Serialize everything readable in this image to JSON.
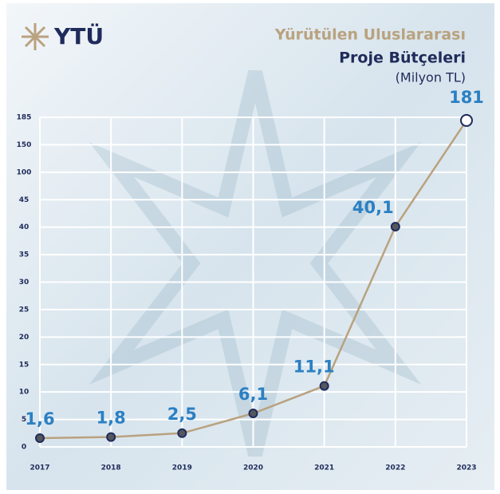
{
  "logo": "YTÜ",
  "chart_data": {
    "type": "line",
    "title": "Yürütülen Uluslararası",
    "subtitle": "Proje Bütçeleri",
    "unit_note": "(Milyon TL)",
    "categories": [
      "2017",
      "2018",
      "2019",
      "2020",
      "2021",
      "2022",
      "2023"
    ],
    "series": [
      {
        "name": "Proje Bütçeleri",
        "color": "#b9a27f",
        "values": [
          1.6,
          1.8,
          2.5,
          6.1,
          11.1,
          40.1,
          181
        ],
        "value_labels": [
          "1,6",
          "1,8",
          "2,5",
          "6,1",
          "11,1",
          "40,1",
          "181"
        ]
      }
    ],
    "ylim": [
      0,
      185
    ],
    "yticks": [
      0,
      5,
      10,
      15,
      20,
      25,
      30,
      35,
      40,
      45,
      100,
      150,
      185
    ],
    "yscale": "piecewise",
    "grid": true
  }
}
